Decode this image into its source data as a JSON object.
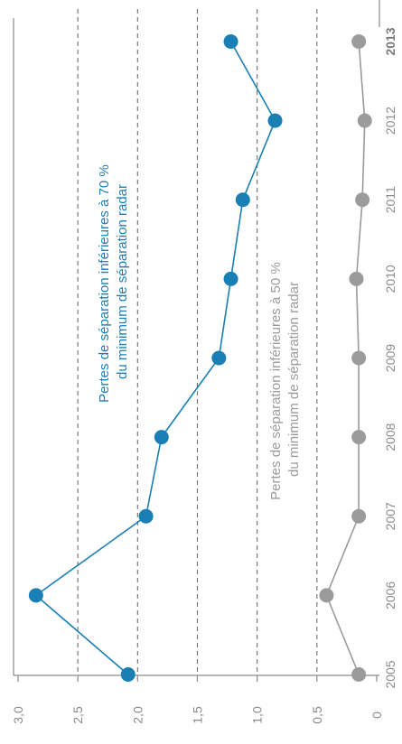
{
  "chart_data": {
    "type": "line",
    "x": [
      "2005",
      "2006",
      "2007",
      "2008",
      "2009",
      "2010",
      "2011",
      "2012",
      "2013"
    ],
    "x_bold": [
      "2013"
    ],
    "y_ticks": [
      "3,0",
      "2,5",
      "2,0",
      "1,5",
      "1,0",
      "0,5",
      "0"
    ],
    "ylim": [
      0,
      3
    ],
    "grid": true,
    "series": [
      {
        "name_lines": [
          "Pertes de séparation inférieures à 70 %",
          "du minimum de séparation radar"
        ],
        "values": [
          2.08,
          2.85,
          1.93,
          1.8,
          1.32,
          1.22,
          1.12,
          0.85,
          1.22
        ],
        "color": "#1a7fb4"
      },
      {
        "name_lines": [
          "Pertes de séparation inférieures à 50 %",
          "du minimum de séparation radar"
        ],
        "values": [
          0.15,
          0.42,
          0.15,
          0.15,
          0.15,
          0.17,
          0.12,
          0.1,
          0.15
        ],
        "color": "#9b9b9b"
      }
    ]
  }
}
